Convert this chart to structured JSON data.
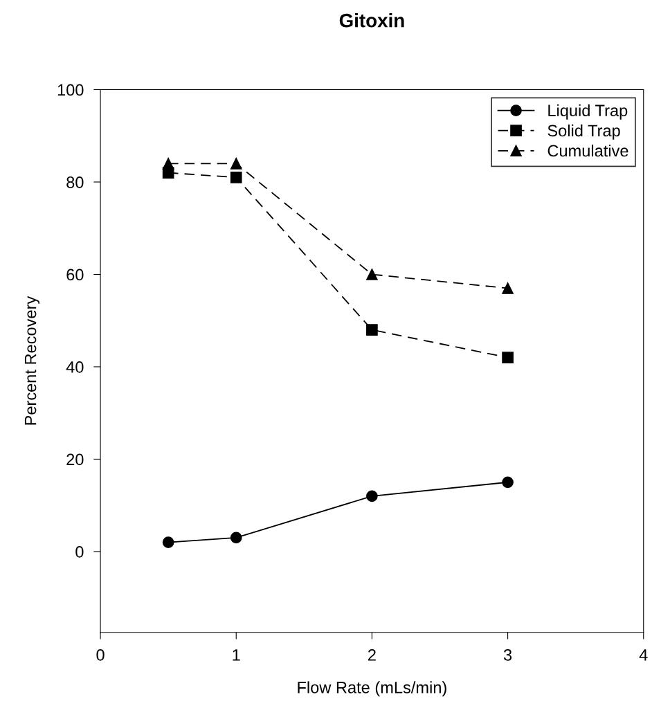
{
  "chart_data": {
    "type": "line",
    "title": "Gitoxin",
    "xlabel": "Flow Rate (mLs/min)",
    "ylabel": "Percent Recovery",
    "x": [
      0.5,
      1,
      2,
      3
    ],
    "series": [
      {
        "name": "Liquid Trap",
        "color": "#000000",
        "values": [
          2,
          3,
          12,
          15
        ],
        "marker": "circle",
        "line_style": "solid"
      },
      {
        "name": "Solid Trap",
        "color": "#000000",
        "values": [
          82,
          81,
          48,
          42
        ],
        "marker": "square",
        "line_style": "dashed"
      },
      {
        "name": "Cumulative",
        "color": "#000000",
        "values": [
          84,
          84,
          60,
          57
        ],
        "marker": "triangle",
        "line_style": "dashed"
      }
    ],
    "xlim": [
      0,
      4
    ],
    "xticks": [
      0,
      1,
      2,
      3,
      4
    ],
    "ylim": [
      -17.5,
      100
    ],
    "yticks": [
      0,
      20,
      40,
      60,
      80,
      100
    ],
    "grid": false,
    "legend": "top right"
  }
}
